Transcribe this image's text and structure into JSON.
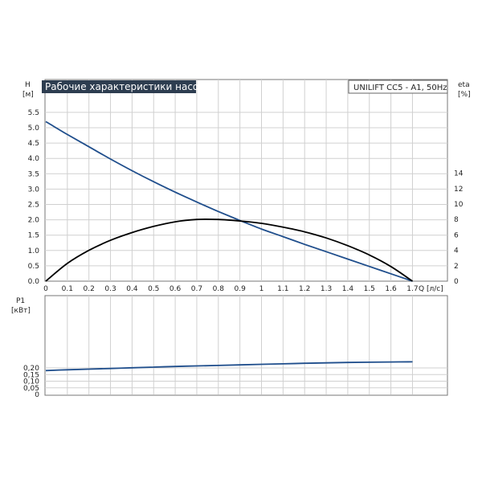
{
  "chart_data": [
    {
      "type": "line",
      "title": "Рабочие характеристики насоса",
      "model": "UNILIFT CC5 - A1, 50Hz",
      "xlabel": "Q [л/с]",
      "ylabel_left": [
        "H",
        "[м]"
      ],
      "ylabel_right": [
        "eta",
        "[%]"
      ],
      "xlim": [
        0,
        1.8
      ],
      "ylim_left": [
        0,
        5.8
      ],
      "ylim_right": [
        0,
        15.5
      ],
      "x_ticks": [
        "0",
        "0.1",
        "0.2",
        "0.3",
        "0.4",
        "0.5",
        "0.6",
        "0.7",
        "0.8",
        "0.9",
        "1",
        "1.1",
        "1.2",
        "1.3",
        "1.4",
        "1.5",
        "1.6",
        "1.7"
      ],
      "y_ticks_left": [
        "0.0",
        "0.5",
        "1.0",
        "1.5",
        "2.0",
        "2.5",
        "3.0",
        "3.5",
        "4.0",
        "4.5",
        "5.0",
        "5.5"
      ],
      "y_ticks_right": [
        "0",
        "2",
        "4",
        "6",
        "8",
        "10",
        "12",
        "14"
      ],
      "grid": true,
      "series": [
        {
          "axis": "left",
          "color": "#1f4e8c",
          "x": [
            0,
            0.1,
            0.2,
            0.3,
            0.4,
            0.5,
            0.6,
            0.7,
            0.8,
            0.9,
            1.0,
            1.1,
            1.2,
            1.3,
            1.4,
            1.5,
            1.6,
            1.7
          ],
          "y": [
            5.2,
            4.78,
            4.38,
            3.98,
            3.6,
            3.24,
            2.9,
            2.58,
            2.27,
            1.98,
            1.7,
            1.45,
            1.2,
            0.96,
            0.72,
            0.48,
            0.24,
            0.0
          ]
        },
        {
          "axis": "right",
          "color": "#000000",
          "x": [
            0,
            0.1,
            0.2,
            0.3,
            0.4,
            0.5,
            0.6,
            0.7,
            0.8,
            0.9,
            1.0,
            1.1,
            1.2,
            1.3,
            1.4,
            1.5,
            1.6,
            1.7
          ],
          "y": [
            0,
            2.3,
            4.0,
            5.3,
            6.3,
            7.1,
            7.7,
            8.0,
            8.0,
            7.8,
            7.5,
            7.0,
            6.4,
            5.6,
            4.6,
            3.4,
            1.9,
            0.0
          ]
        }
      ]
    },
    {
      "type": "line",
      "ylabel": [
        "P1",
        "[кВт]"
      ],
      "xlim": [
        0,
        1.8
      ],
      "ylim": [
        0,
        0.25
      ],
      "y_ticks": [
        "0",
        "0,05",
        "0,10",
        "0,15",
        "0,20"
      ],
      "grid": true,
      "series": [
        {
          "color": "#1f4e8c",
          "x": [
            0,
            0.1,
            0.2,
            0.3,
            0.4,
            0.5,
            0.6,
            0.7,
            0.8,
            0.9,
            1.0,
            1.1,
            1.2,
            1.3,
            1.4,
            1.5,
            1.6,
            1.7
          ],
          "y": [
            0.18,
            0.186,
            0.191,
            0.196,
            0.201,
            0.206,
            0.211,
            0.215,
            0.219,
            0.223,
            0.227,
            0.231,
            0.235,
            0.238,
            0.241,
            0.243,
            0.245,
            0.246
          ]
        }
      ]
    }
  ]
}
